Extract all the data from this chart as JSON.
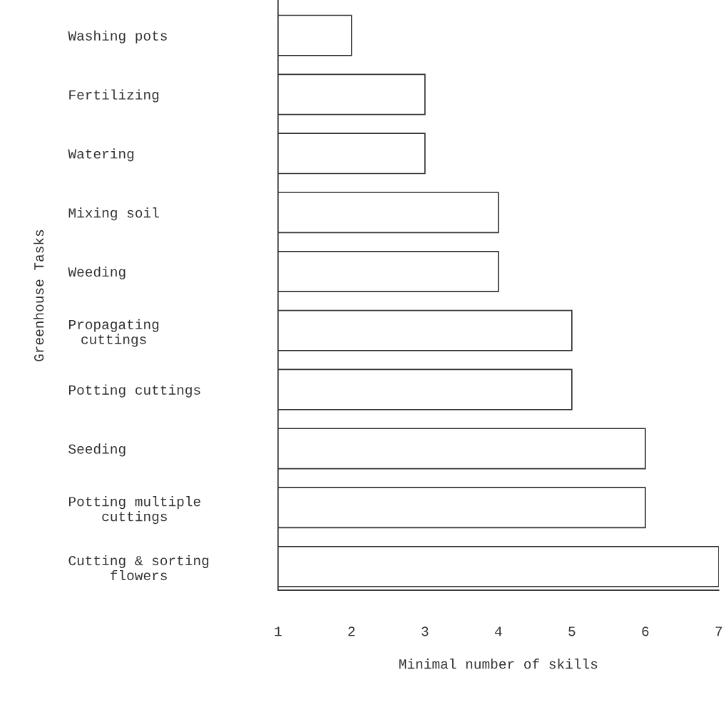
{
  "chart_data": {
    "type": "bar",
    "orientation": "horizontal",
    "xlabel": "Minimal number of skills",
    "ylabel": "Greenhouse Tasks",
    "categories": [
      "Washing pots",
      "Fertilizing",
      "Watering",
      "Mixing soil",
      "Weeding",
      "Propagating\ncuttings",
      "Potting cuttings",
      "Seeding",
      "Potting multiple\ncuttings",
      "Cutting & sorting\nflowers"
    ],
    "values": [
      2,
      3,
      3,
      4,
      4,
      5,
      5,
      6,
      6,
      7
    ],
    "color": "#ffffff",
    "xlim": [
      1,
      7
    ],
    "xticks": [
      1,
      2,
      3,
      4,
      5,
      6,
      7
    ],
    "grid": false,
    "legend": false
  }
}
